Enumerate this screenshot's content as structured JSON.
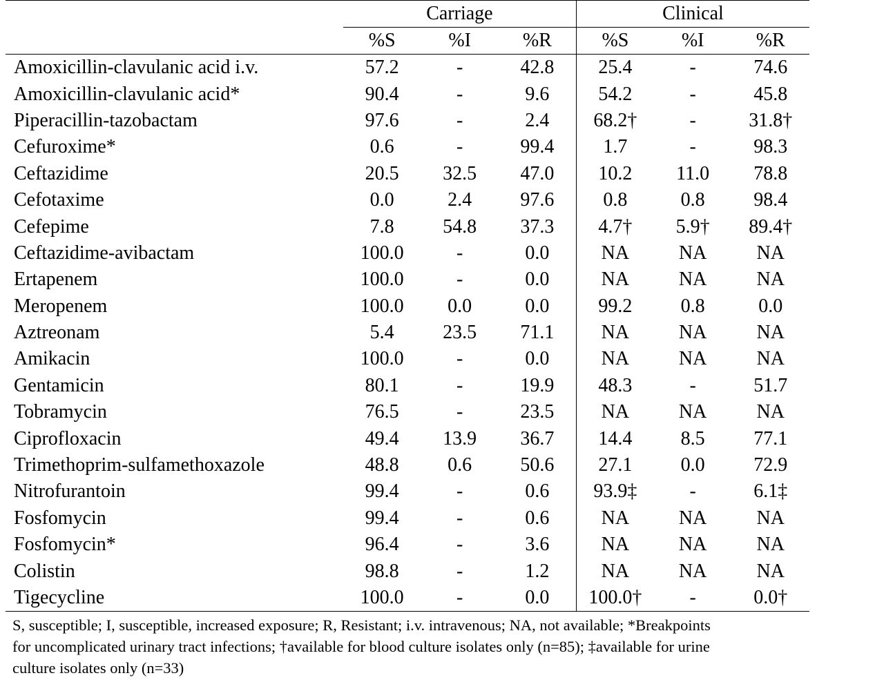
{
  "groups": {
    "carriage": "Carriage",
    "clinical": "Clinical"
  },
  "subheaders": [
    "%S",
    "%I",
    "%R",
    "%S",
    "%I",
    "%R"
  ],
  "rows": [
    {
      "drug": "Amoxicillin-clavulanic acid i.v.",
      "values": [
        "57.2",
        "-",
        "42.8",
        "25.4",
        "-",
        "74.6"
      ]
    },
    {
      "drug": "Amoxicillin-clavulanic acid*",
      "values": [
        "90.4",
        "-",
        "9.6",
        "54.2",
        "-",
        "45.8"
      ]
    },
    {
      "drug": "Piperacillin-tazobactam",
      "values": [
        "97.6",
        "-",
        "2.4",
        "68.2†",
        "-",
        "31.8†"
      ]
    },
    {
      "drug": "Cefuroxime*",
      "values": [
        "0.6",
        "-",
        "99.4",
        "1.7",
        "-",
        "98.3"
      ]
    },
    {
      "drug": "Ceftazidime",
      "values": [
        "20.5",
        "32.5",
        "47.0",
        "10.2",
        "11.0",
        "78.8"
      ]
    },
    {
      "drug": "Cefotaxime",
      "values": [
        "0.0",
        "2.4",
        "97.6",
        "0.8",
        "0.8",
        "98.4"
      ]
    },
    {
      "drug": "Cefepime",
      "values": [
        "7.8",
        "54.8",
        "37.3",
        "4.7†",
        "5.9†",
        "89.4†"
      ]
    },
    {
      "drug": "Ceftazidime-avibactam",
      "values": [
        "100.0",
        "-",
        "0.0",
        "NA",
        "NA",
        "NA"
      ]
    },
    {
      "drug": "Ertapenem",
      "values": [
        "100.0",
        "-",
        "0.0",
        "NA",
        "NA",
        "NA"
      ]
    },
    {
      "drug": "Meropenem",
      "values": [
        "100.0",
        "0.0",
        "0.0",
        "99.2",
        "0.8",
        "0.0"
      ]
    },
    {
      "drug": "Aztreonam",
      "values": [
        "5.4",
        "23.5",
        "71.1",
        "NA",
        "NA",
        "NA"
      ]
    },
    {
      "drug": "Amikacin",
      "values": [
        "100.0",
        "-",
        "0.0",
        "NA",
        "NA",
        "NA"
      ]
    },
    {
      "drug": "Gentamicin",
      "values": [
        "80.1",
        "-",
        "19.9",
        "48.3",
        "-",
        "51.7"
      ]
    },
    {
      "drug": "Tobramycin",
      "values": [
        "76.5",
        "-",
        "23.5",
        "NA",
        "NA",
        "NA"
      ]
    },
    {
      "drug": "Ciprofloxacin",
      "values": [
        "49.4",
        "13.9",
        "36.7",
        "14.4",
        "8.5",
        "77.1"
      ]
    },
    {
      "drug": "Trimethoprim-sulfamethoxazole",
      "values": [
        "48.8",
        "0.6",
        "50.6",
        "27.1",
        "0.0",
        "72.9"
      ]
    },
    {
      "drug": "Nitrofurantoin",
      "values": [
        "99.4",
        "-",
        "0.6",
        "93.9‡",
        "-",
        "6.1‡"
      ]
    },
    {
      "drug": "Fosfomycin",
      "values": [
        "99.4",
        "-",
        "0.6",
        "NA",
        "NA",
        "NA"
      ]
    },
    {
      "drug": "Fosfomycin*",
      "values": [
        "96.4",
        "-",
        "3.6",
        "NA",
        "NA",
        "NA"
      ]
    },
    {
      "drug": "Colistin",
      "values": [
        "98.8",
        "-",
        "1.2",
        "NA",
        "NA",
        "NA"
      ]
    },
    {
      "drug": "Tigecycline",
      "values": [
        "100.0",
        "-",
        "0.0",
        "100.0†",
        "-",
        "0.0†"
      ]
    }
  ],
  "footnote": {
    "line1": "S, susceptible; I, susceptible, increased exposure; R, Resistant; i.v. intravenous; NA, not available; *Breakpoints",
    "line2": "for uncomplicated urinary tract infections; †available for blood culture isolates only (n=85); ‡available for urine",
    "line3": "culture isolates only (n=33)"
  }
}
